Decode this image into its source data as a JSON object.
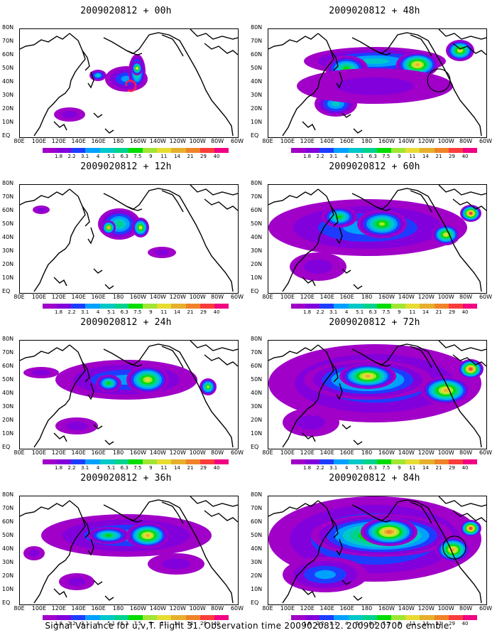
{
  "panels": [
    {
      "title": "2009020812 + 00h"
    },
    {
      "title": "2009020812 + 48h"
    },
    {
      "title": "2009020812 + 12h"
    },
    {
      "title": "2009020812 + 60h"
    },
    {
      "title": "2009020812 + 24h"
    },
    {
      "title": "2009020812 + 72h"
    },
    {
      "title": "2009020812 + 36h"
    },
    {
      "title": "2009020812 + 84h"
    }
  ],
  "axes": {
    "lat_labels": [
      "80N",
      "70N",
      "60N",
      "50N",
      "40N",
      "30N",
      "20N",
      "10N",
      "EQ"
    ],
    "lon_labels": [
      "80E",
      "100E",
      "120E",
      "140E",
      "160E",
      "180",
      "160W",
      "140W",
      "120W",
      "100W",
      "80W",
      "60W"
    ]
  },
  "colorbar": {
    "labels": [
      "1.8",
      "2.2",
      "3.1",
      "4",
      "5.1",
      "6.3",
      "7.5",
      "9",
      "11",
      "14",
      "21",
      "29",
      "40"
    ],
    "colors": [
      "#a000c8",
      "#8200dc",
      "#1e3cff",
      "#00a0ff",
      "#00c8c8",
      "#00d28c",
      "#00dc00",
      "#a0e632",
      "#e6dc32",
      "#e6af2d",
      "#f08228",
      "#fa3c3c",
      "#f00082"
    ]
  },
  "footer": "Signal Variance for u,v,T. Flight 31. Observation time 2009020812. 2009020700 ensemble."
}
